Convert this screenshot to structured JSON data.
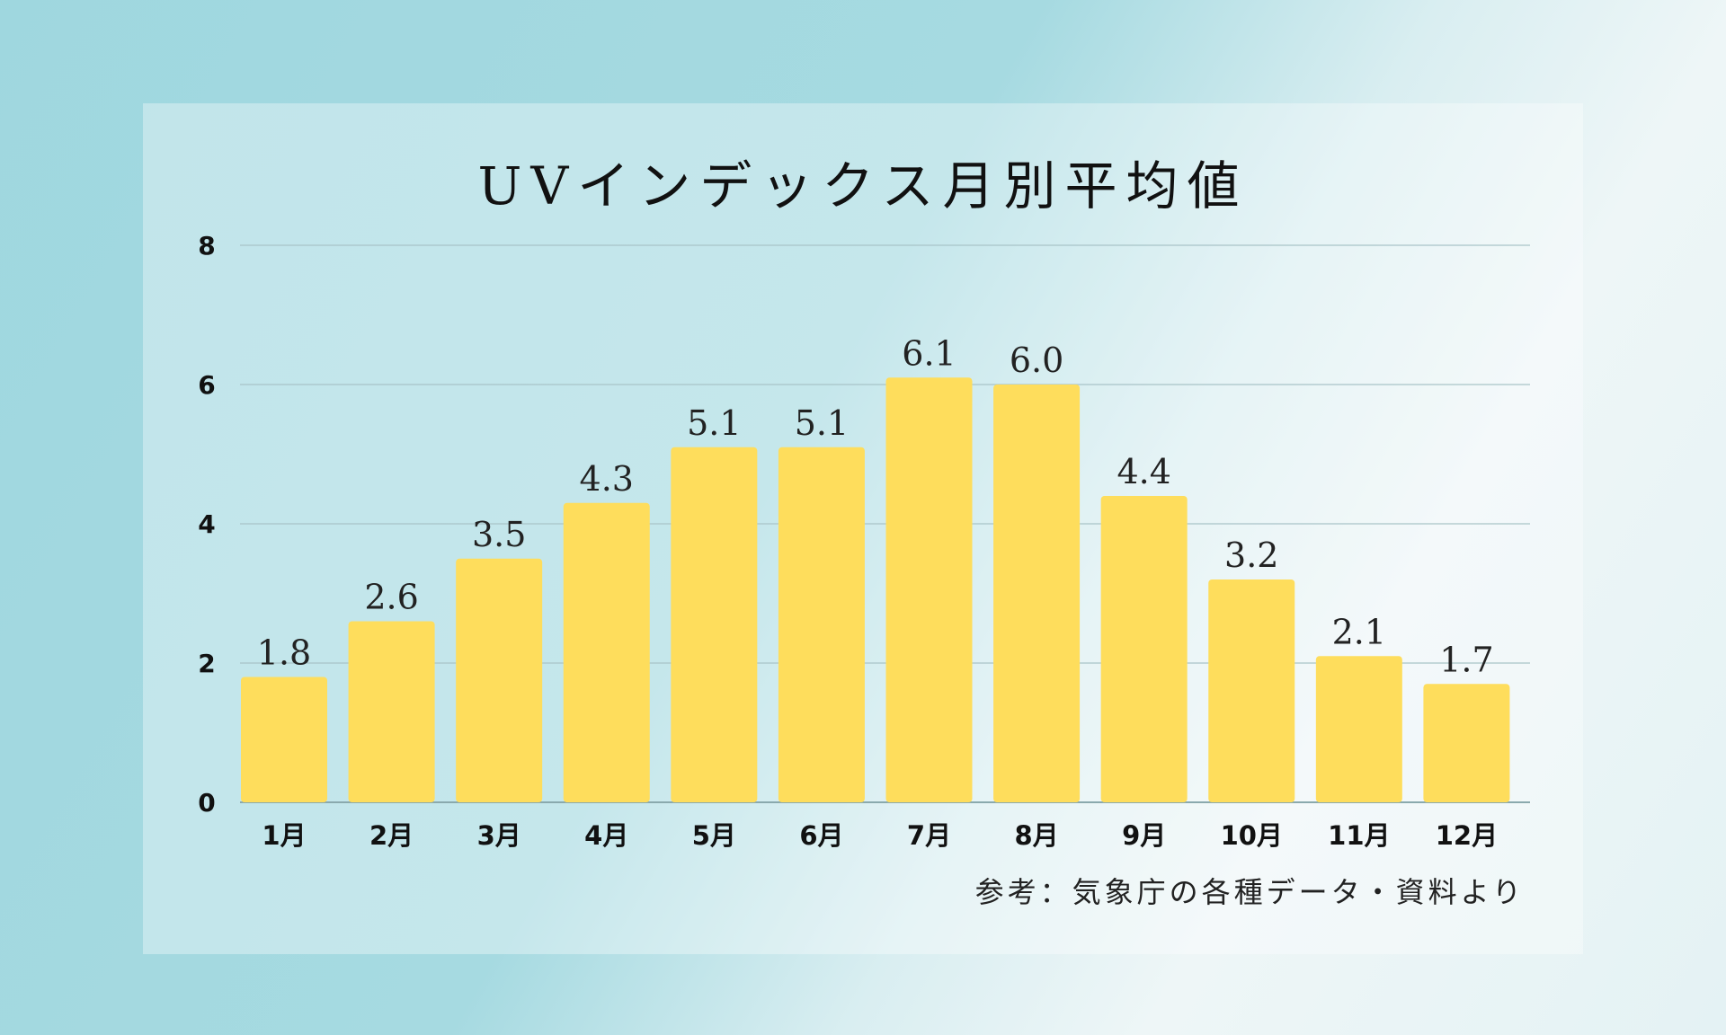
{
  "chart_data": {
    "type": "bar",
    "title": "UVインデックス月別平均値",
    "categories": [
      "1月",
      "2月",
      "3月",
      "4月",
      "5月",
      "6月",
      "7月",
      "8月",
      "9月",
      "10月",
      "11月",
      "12月"
    ],
    "values": [
      1.8,
      2.6,
      3.5,
      4.3,
      5.1,
      5.1,
      6.1,
      6.0,
      4.4,
      3.2,
      2.1,
      1.7
    ],
    "value_labels": [
      "1.8",
      "2.6",
      "3.5",
      "4.3",
      "5.1",
      "5.1",
      "6.1",
      "6.0",
      "4.4",
      "3.2",
      "2.1",
      "1.7"
    ],
    "ylim": [
      0,
      8
    ],
    "yticks": [
      "0",
      "2",
      "4",
      "6",
      "8"
    ],
    "xlabel": "",
    "ylabel": "",
    "grid": true,
    "bar_color": "#FEDD5C",
    "source": "参考：気象庁の各種データ・資料より"
  }
}
